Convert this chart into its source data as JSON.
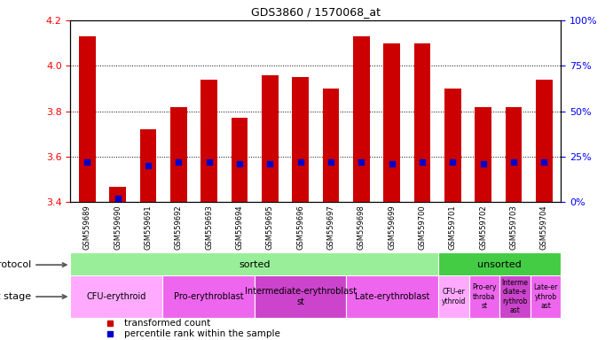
{
  "title": "GDS3860 / 1570068_at",
  "samples": [
    "GSM559689",
    "GSM559690",
    "GSM559691",
    "GSM559692",
    "GSM559693",
    "GSM559694",
    "GSM559695",
    "GSM559696",
    "GSM559697",
    "GSM559698",
    "GSM559699",
    "GSM559700",
    "GSM559701",
    "GSM559702",
    "GSM559703",
    "GSM559704"
  ],
  "transformed_count": [
    4.13,
    3.47,
    3.72,
    3.82,
    3.94,
    3.77,
    3.96,
    3.95,
    3.9,
    4.13,
    4.1,
    4.1,
    3.9,
    3.82,
    3.82,
    3.94
  ],
  "percentile_rank": [
    22,
    2,
    20,
    22,
    22,
    21,
    21,
    22,
    22,
    22,
    21,
    22,
    22,
    21,
    22,
    22
  ],
  "ylim_left": [
    3.4,
    4.2
  ],
  "ylim_right": [
    0,
    100
  ],
  "yticks_left": [
    3.4,
    3.6,
    3.8,
    4.0,
    4.2
  ],
  "yticks_right": [
    0,
    25,
    50,
    75,
    100
  ],
  "bar_color": "#cc0000",
  "dot_color": "#0000cc",
  "chart_bg": "#ffffff",
  "xticklabel_bg": "#cccccc",
  "protocol_groups": [
    {
      "label": "sorted",
      "start": 0,
      "end": 12,
      "color": "#99ee99"
    },
    {
      "label": "unsorted",
      "start": 12,
      "end": 16,
      "color": "#44cc44"
    }
  ],
  "dev_stage_groups": [
    {
      "label": "CFU-erythroid",
      "start": 0,
      "end": 3,
      "color": "#ffaaff"
    },
    {
      "label": "Pro-erythroblast",
      "start": 3,
      "end": 6,
      "color": "#ee66ee"
    },
    {
      "label": "Intermediate-erythroblast\nst",
      "start": 6,
      "end": 9,
      "color": "#cc44cc"
    },
    {
      "label": "Late-erythroblast",
      "start": 9,
      "end": 12,
      "color": "#ee66ee"
    },
    {
      "label": "CFU-er\nythroid",
      "start": 12,
      "end": 13,
      "color": "#ffaaff"
    },
    {
      "label": "Pro-ery\nthroba\nst",
      "start": 13,
      "end": 14,
      "color": "#ee66ee"
    },
    {
      "label": "Interme\ndiate-e\nrythrob\nast",
      "start": 14,
      "end": 15,
      "color": "#cc44cc"
    },
    {
      "label": "Late-er\nythrob\nast",
      "start": 15,
      "end": 16,
      "color": "#ee66ee"
    }
  ],
  "legend_items": [
    {
      "label": "transformed count",
      "color": "#cc0000"
    },
    {
      "label": "percentile rank within the sample",
      "color": "#0000cc"
    }
  ]
}
